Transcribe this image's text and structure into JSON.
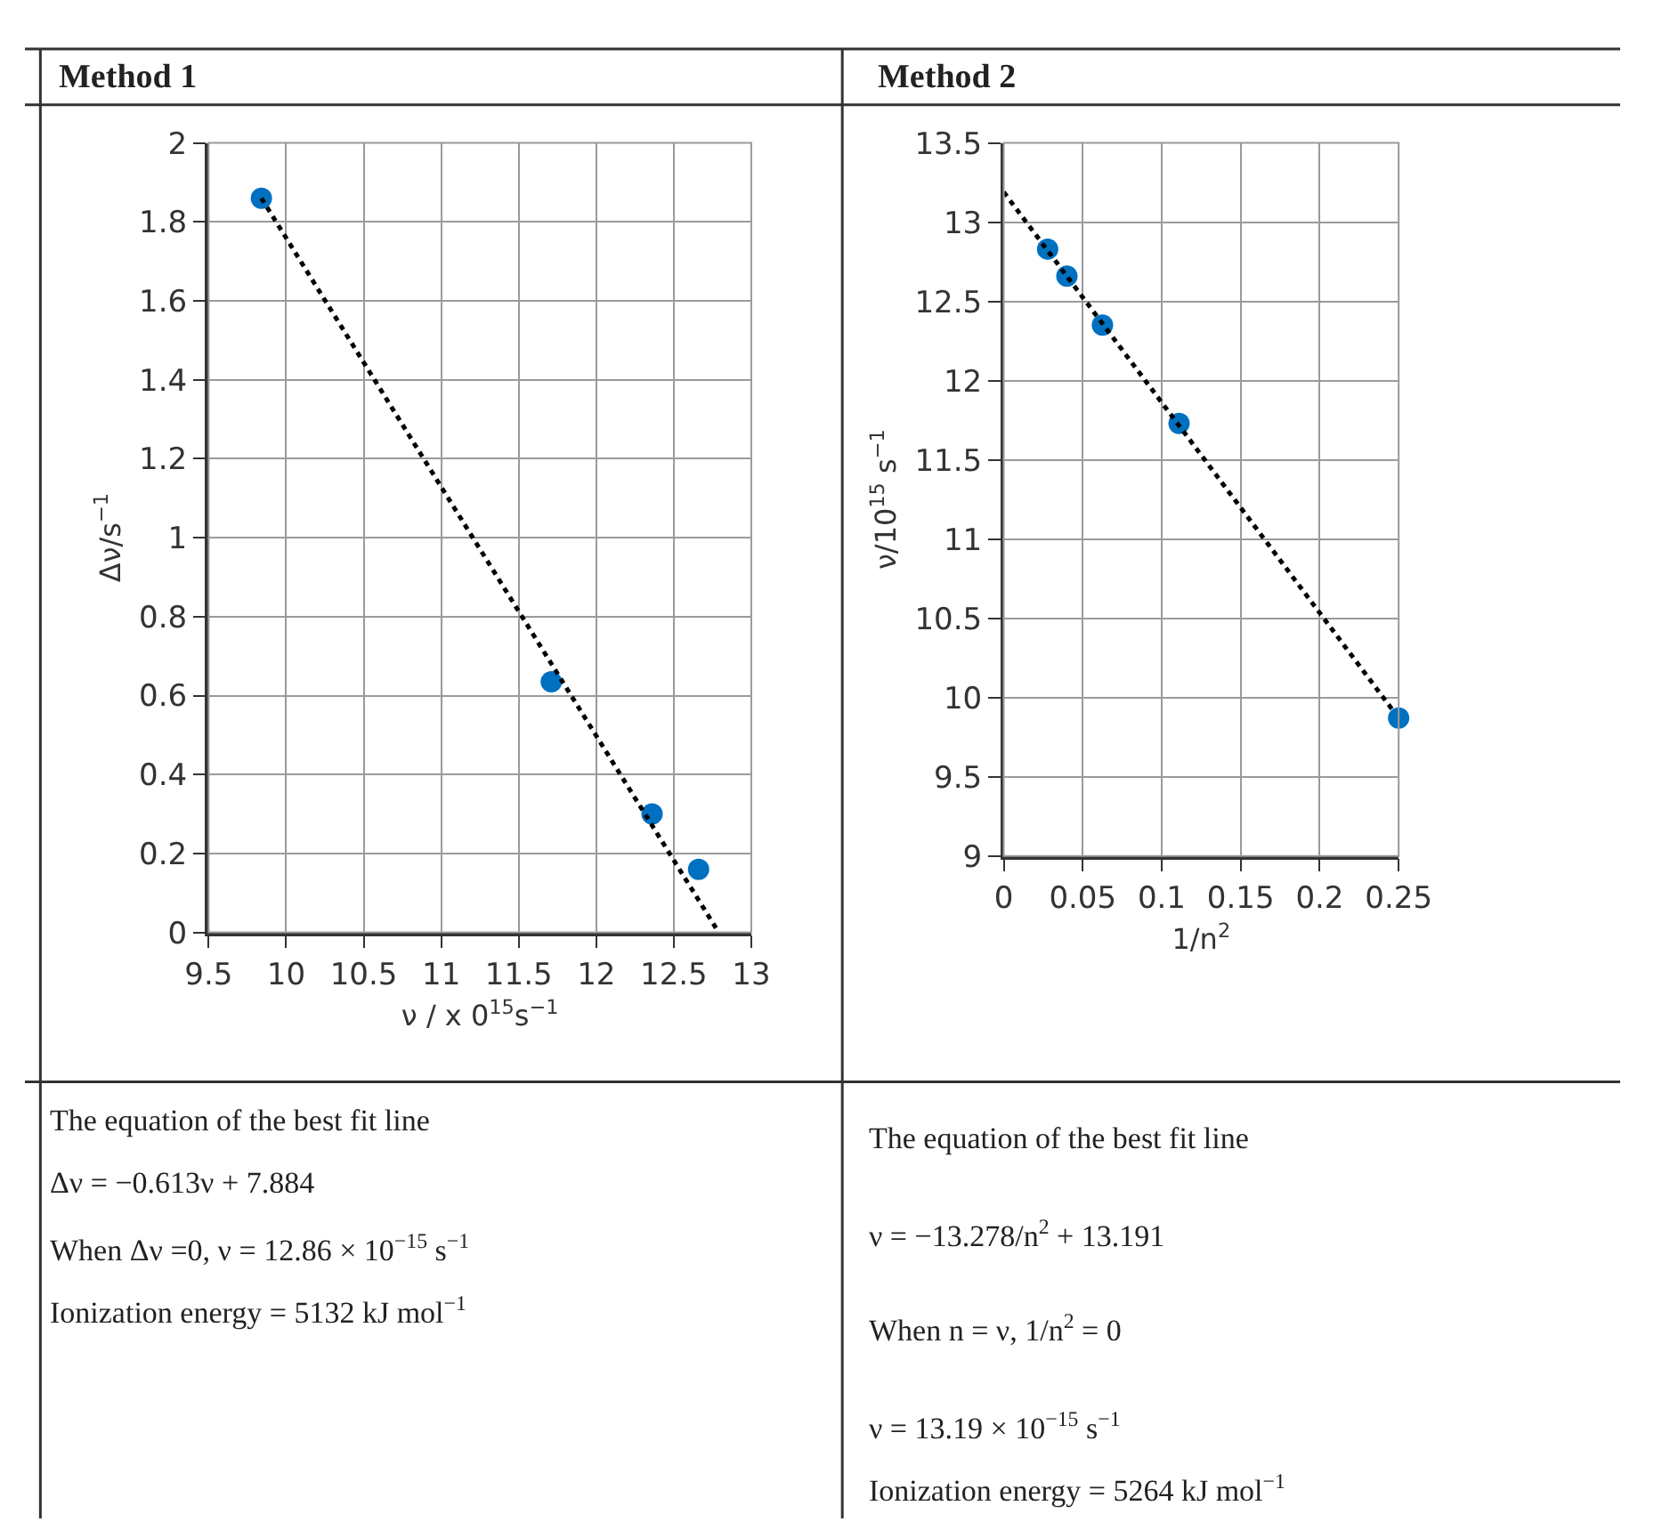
{
  "chart_data": [
    {
      "type": "scatter",
      "title": "Method 1",
      "xlabel": "ν / x 0$^{15}$s$^{−1}$",
      "ylabel": "Δν/s$^{−1}$",
      "xlim": [
        9.5,
        13
      ],
      "xticks": [
        9.5,
        10,
        10.5,
        11,
        11.5,
        12,
        12.5,
        13
      ],
      "ylim": [
        0,
        2
      ],
      "yticks": [
        0,
        0.2,
        0.4,
        0.6,
        0.8,
        1,
        1.2,
        1.4,
        1.6,
        1.8,
        2
      ],
      "grid": true,
      "series": [
        {
          "color": "#0070c0",
          "marker": "circle",
          "x": [
            9.84,
            11.71,
            12.36,
            12.66
          ],
          "values": [
            1.86,
            0.635,
            0.3,
            0.16
          ]
        },
        {
          "type": "line",
          "color": "#000000",
          "line_style": "dotted",
          "marker": "none",
          "x": [
            9.84,
            12.79
          ],
          "values": [
            1.86,
            0.0
          ]
        }
      ],
      "annotations": [
        "The equation of the best fit line",
        "Δν = −0.613ν + 7.884",
        "When Δν =0, ν = 12.86 × 10$^{−15}$ s$^{−1}$",
        "Ionization energy = 5132 kJ mol$^{−1}$"
      ]
    },
    {
      "type": "scatter",
      "title": "Method 2",
      "xlabel": "1/n$^{2}$",
      "ylabel": "ν/10$^{15}$ s$^{−1}$",
      "xlim": [
        0,
        0.25
      ],
      "xticks": [
        0,
        0.05,
        0.1,
        0.15,
        0.2,
        0.25
      ],
      "ylim": [
        9,
        13.5
      ],
      "yticks": [
        9,
        9.5,
        10,
        10.5,
        11,
        11.5,
        12,
        12.5,
        13,
        13.5
      ],
      "grid": true,
      "series": [
        {
          "color": "#0070c0",
          "marker": "circle",
          "x": [
            0.0278,
            0.04,
            0.0625,
            0.111,
            0.25
          ],
          "values": [
            12.83,
            12.66,
            12.35,
            11.73,
            9.87
          ]
        },
        {
          "type": "line",
          "color": "#000000",
          "line_style": "dotted",
          "marker": "none",
          "x": [
            0,
            0.247
          ],
          "values": [
            13.19,
            9.91
          ]
        }
      ],
      "annotations": [
        "The equation of the best fit line",
        "ν = −13.278/n$^{2}$ + 13.191",
        "When n = ν, 1/n$^{2}$ = 0",
        "ν = 13.19 × 10$^{−15}$ s$^{−1}$",
        "Ionization energy = 5264 kJ mol$^{−1}$"
      ]
    }
  ]
}
